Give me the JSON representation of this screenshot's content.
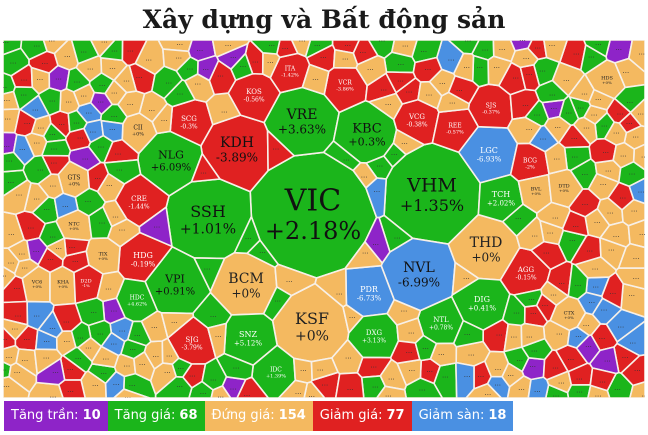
{
  "title": "Xây dựng và Bất động sản",
  "colors": {
    "ceiling": "#8e24c8",
    "up": "#1bb51b",
    "ref": "#f4b960",
    "down": "#e02121",
    "floor": "#4a90e2",
    "border": "#f7f0e8"
  },
  "legend": [
    {
      "label": "Tăng trần:",
      "count": "10",
      "key": "ceiling"
    },
    {
      "label": "Tăng giá:",
      "count": "68",
      "key": "up"
    },
    {
      "label": "Đứng giá:",
      "count": "154",
      "key": "ref"
    },
    {
      "label": "Giảm giá:",
      "count": "77",
      "key": "down"
    },
    {
      "label": "Giảm sàn:",
      "count": "18",
      "key": "floor"
    }
  ],
  "chart_data": {
    "type": "heatmap",
    "title": "Xây dựng và Bất động sản",
    "tiles": [
      {
        "ticker": "VIC",
        "change": "+2.18%",
        "status": "up"
      },
      {
        "ticker": "VHM",
        "change": "+1.35%",
        "status": "up"
      },
      {
        "ticker": "SSH",
        "change": "+1.01%",
        "status": "up"
      },
      {
        "ticker": "KDH",
        "change": "-3.89%",
        "status": "down"
      },
      {
        "ticker": "VRE",
        "change": "+3.63%",
        "status": "up"
      },
      {
        "ticker": "KBC",
        "change": "+0.3%",
        "status": "up"
      },
      {
        "ticker": "NVL",
        "change": "-6.99%",
        "status": "floor"
      },
      {
        "ticker": "KSF",
        "change": "+0%",
        "status": "ref"
      },
      {
        "ticker": "BCM",
        "change": "+0%",
        "status": "ref"
      },
      {
        "ticker": "THD",
        "change": "+0%",
        "status": "ref"
      },
      {
        "ticker": "NLG",
        "change": "+6.09%",
        "status": "up"
      },
      {
        "ticker": "VPI",
        "change": "+0.91%",
        "status": "up"
      },
      {
        "ticker": "HDG",
        "change": "-0.19%",
        "status": "down"
      },
      {
        "ticker": "PDR",
        "change": "-6.73%",
        "status": "floor"
      },
      {
        "ticker": "LGC",
        "change": "-6.93%",
        "status": "floor"
      },
      {
        "ticker": "DIG",
        "change": "+0.41%",
        "status": "up"
      },
      {
        "ticker": "TCH",
        "change": "+2.02%",
        "status": "up"
      },
      {
        "ticker": "SCG",
        "change": "-0.3%",
        "status": "down"
      },
      {
        "ticker": "KOS",
        "change": "-0.56%",
        "status": "down"
      },
      {
        "ticker": "SNZ",
        "change": "+5.12%",
        "status": "up"
      },
      {
        "ticker": "DXG",
        "change": "+3.13%",
        "status": "up"
      },
      {
        "ticker": "SJG",
        "change": "-3.79%",
        "status": "down"
      },
      {
        "ticker": "CRE",
        "change": "-1.44%",
        "status": "down"
      },
      {
        "ticker": "VCG",
        "change": "-0.38%",
        "status": "down"
      },
      {
        "ticker": "VCR",
        "change": "-3.86%",
        "status": "down"
      },
      {
        "ticker": "ITA",
        "change": "-1.42%",
        "status": "down"
      },
      {
        "ticker": "SJS",
        "change": "-0.37%",
        "status": "down"
      },
      {
        "ticker": "REE",
        "change": "-0.57%",
        "status": "down"
      },
      {
        "ticker": "BCG",
        "change": "-2%",
        "status": "down"
      },
      {
        "ticker": "AGG",
        "change": "-0.15%",
        "status": "down"
      },
      {
        "ticker": "NTL",
        "change": "+0.78%",
        "status": "up"
      },
      {
        "ticker": "HDC",
        "change": "+4.62%",
        "status": "up"
      },
      {
        "ticker": "IDC",
        "change": "+1.39%",
        "status": "up"
      },
      {
        "ticker": "GTS",
        "change": "+0%",
        "status": "ref"
      },
      {
        "ticker": "CII",
        "change": "+0%",
        "status": "ref"
      },
      {
        "ticker": "NTC",
        "change": "+0%",
        "status": "ref"
      },
      {
        "ticker": "TIX",
        "change": "+0%",
        "status": "ref"
      },
      {
        "ticker": "VC6",
        "change": "+0%",
        "status": "ref"
      },
      {
        "ticker": "KHA",
        "change": "+0%",
        "status": "ref"
      },
      {
        "ticker": "D2D",
        "change": "-1%",
        "status": "down"
      },
      {
        "ticker": "BVL",
        "change": "+0%",
        "status": "ref"
      },
      {
        "ticker": "DTD",
        "change": "+0%",
        "status": "ref"
      },
      {
        "ticker": "CTX",
        "change": "+0%",
        "status": "ref"
      },
      {
        "ticker": "HDS",
        "change": "+0%",
        "status": "ref"
      }
    ]
  }
}
